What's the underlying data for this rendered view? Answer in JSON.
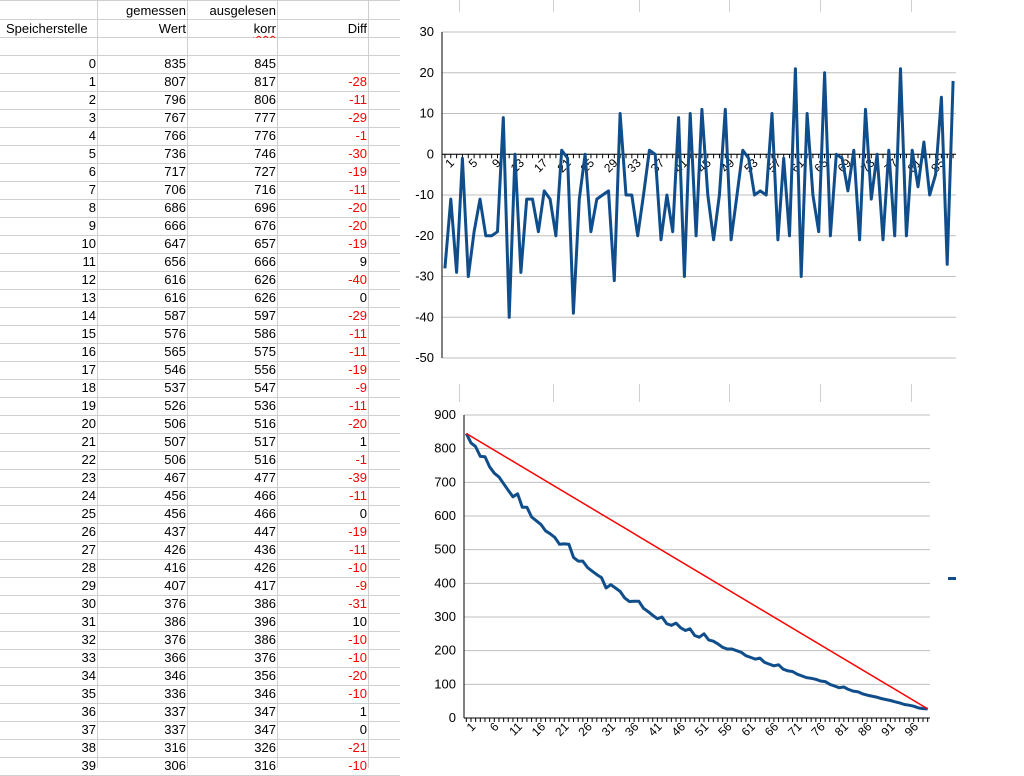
{
  "sheet": {
    "headers": {
      "row1": [
        "",
        "gemessen",
        "ausgelesen",
        ""
      ],
      "row2": [
        "Speicherstelle",
        "Wert",
        "korr",
        "Diff"
      ]
    },
    "rows": [
      {
        "addr": "0",
        "gemessen": "835",
        "ausgelesen": "845",
        "diff": ""
      },
      {
        "addr": "1",
        "gemessen": "807",
        "ausgelesen": "817",
        "diff": "-28"
      },
      {
        "addr": "2",
        "gemessen": "796",
        "ausgelesen": "806",
        "diff": "-11"
      },
      {
        "addr": "3",
        "gemessen": "767",
        "ausgelesen": "777",
        "diff": "-29"
      },
      {
        "addr": "4",
        "gemessen": "766",
        "ausgelesen": "776",
        "diff": "-1"
      },
      {
        "addr": "5",
        "gemessen": "736",
        "ausgelesen": "746",
        "diff": "-30"
      },
      {
        "addr": "6",
        "gemessen": "717",
        "ausgelesen": "727",
        "diff": "-19"
      },
      {
        "addr": "7",
        "gemessen": "706",
        "ausgelesen": "716",
        "diff": "-11"
      },
      {
        "addr": "8",
        "gemessen": "686",
        "ausgelesen": "696",
        "diff": "-20"
      },
      {
        "addr": "9",
        "gemessen": "666",
        "ausgelesen": "676",
        "diff": "-20"
      },
      {
        "addr": "10",
        "gemessen": "647",
        "ausgelesen": "657",
        "diff": "-19"
      },
      {
        "addr": "11",
        "gemessen": "656",
        "ausgelesen": "666",
        "diff": "9"
      },
      {
        "addr": "12",
        "gemessen": "616",
        "ausgelesen": "626",
        "diff": "-40"
      },
      {
        "addr": "13",
        "gemessen": "616",
        "ausgelesen": "626",
        "diff": "0"
      },
      {
        "addr": "14",
        "gemessen": "587",
        "ausgelesen": "597",
        "diff": "-29"
      },
      {
        "addr": "15",
        "gemessen": "576",
        "ausgelesen": "586",
        "diff": "-11"
      },
      {
        "addr": "16",
        "gemessen": "565",
        "ausgelesen": "575",
        "diff": "-11"
      },
      {
        "addr": "17",
        "gemessen": "546",
        "ausgelesen": "556",
        "diff": "-19"
      },
      {
        "addr": "18",
        "gemessen": "537",
        "ausgelesen": "547",
        "diff": "-9"
      },
      {
        "addr": "19",
        "gemessen": "526",
        "ausgelesen": "536",
        "diff": "-11"
      },
      {
        "addr": "20",
        "gemessen": "506",
        "ausgelesen": "516",
        "diff": "-20"
      },
      {
        "addr": "21",
        "gemessen": "507",
        "ausgelesen": "517",
        "diff": "1"
      },
      {
        "addr": "22",
        "gemessen": "506",
        "ausgelesen": "516",
        "diff": "-1"
      },
      {
        "addr": "23",
        "gemessen": "467",
        "ausgelesen": "477",
        "diff": "-39"
      },
      {
        "addr": "24",
        "gemessen": "456",
        "ausgelesen": "466",
        "diff": "-11"
      },
      {
        "addr": "25",
        "gemessen": "456",
        "ausgelesen": "466",
        "diff": "0"
      },
      {
        "addr": "26",
        "gemessen": "437",
        "ausgelesen": "447",
        "diff": "-19"
      },
      {
        "addr": "27",
        "gemessen": "426",
        "ausgelesen": "436",
        "diff": "-11"
      },
      {
        "addr": "28",
        "gemessen": "416",
        "ausgelesen": "426",
        "diff": "-10"
      },
      {
        "addr": "29",
        "gemessen": "407",
        "ausgelesen": "417",
        "diff": "-9"
      },
      {
        "addr": "30",
        "gemessen": "376",
        "ausgelesen": "386",
        "diff": "-31"
      },
      {
        "addr": "31",
        "gemessen": "386",
        "ausgelesen": "396",
        "diff": "10"
      },
      {
        "addr": "32",
        "gemessen": "376",
        "ausgelesen": "386",
        "diff": "-10"
      },
      {
        "addr": "33",
        "gemessen": "366",
        "ausgelesen": "376",
        "diff": "-10"
      },
      {
        "addr": "34",
        "gemessen": "346",
        "ausgelesen": "356",
        "diff": "-20"
      },
      {
        "addr": "35",
        "gemessen": "336",
        "ausgelesen": "346",
        "diff": "-10"
      },
      {
        "addr": "36",
        "gemessen": "337",
        "ausgelesen": "347",
        "diff": "1"
      },
      {
        "addr": "37",
        "gemessen": "337",
        "ausgelesen": "347",
        "diff": "0"
      },
      {
        "addr": "38",
        "gemessen": "316",
        "ausgelesen": "326",
        "diff": "-21"
      },
      {
        "addr": "39",
        "gemessen": "306",
        "ausgelesen": "316",
        "diff": "-10"
      }
    ]
  },
  "colors": {
    "series": "#104e8b",
    "reference_line": "#ff0000",
    "negative_text": "#ff0000",
    "gridline": "#bfbfbf"
  },
  "chart_data": [
    {
      "type": "line",
      "title": "",
      "xlabel": "",
      "ylabel": "",
      "ylim": [
        -50,
        30
      ],
      "yticks": [
        30,
        20,
        10,
        0,
        -10,
        -20,
        -30,
        -40,
        -50
      ],
      "xtick_labels": [
        "1",
        "5",
        "9",
        "13",
        "17",
        "21",
        "25",
        "29",
        "33",
        "37",
        "41",
        "45",
        "49",
        "53",
        "57",
        "61",
        "65",
        "69",
        "73",
        "77",
        "81",
        "85"
      ],
      "grid": true,
      "series": [
        {
          "values": [
            -28,
            -11,
            -29,
            -1,
            -30,
            -19,
            -11,
            -20,
            -20,
            -19,
            9,
            -40,
            0,
            -29,
            -11,
            -11,
            -19,
            -9,
            -11,
            -20,
            1,
            -1,
            -39,
            -11,
            0,
            -19,
            -11,
            -10,
            -9,
            -31,
            10,
            -10,
            -10,
            -20,
            -10,
            1,
            0,
            -21,
            -10,
            -19,
            9,
            -30,
            10,
            -20,
            11,
            -10,
            -21,
            -10,
            11,
            -21,
            -10,
            1,
            -1,
            -10,
            -9,
            -10,
            10,
            -21,
            -1,
            -20,
            21,
            -30,
            10,
            -10,
            -19,
            20,
            -20,
            0,
            -1,
            -9,
            1,
            -21,
            11,
            -11,
            0,
            -21,
            1,
            -20,
            21,
            -20,
            1,
            -8,
            3,
            -10,
            -5,
            14,
            -27,
            18
          ]
        }
      ]
    },
    {
      "type": "line",
      "title": "",
      "xlabel": "",
      "ylabel": "",
      "ylim": [
        0,
        900
      ],
      "yticks": [
        900,
        800,
        700,
        600,
        500,
        400,
        300,
        200,
        100,
        0
      ],
      "xtick_labels": [
        "1",
        "6",
        "11",
        "16",
        "21",
        "26",
        "31",
        "36",
        "41",
        "46",
        "51",
        "56",
        "61",
        "66",
        "71",
        "76",
        "81",
        "86",
        "91",
        "96"
      ],
      "grid": true,
      "series": [
        {
          "color_key": "series",
          "values": [
            845,
            817,
            806,
            777,
            776,
            746,
            727,
            716,
            696,
            676,
            657,
            666,
            626,
            626,
            597,
            586,
            575,
            556,
            547,
            536,
            516,
            517,
            516,
            477,
            466,
            466,
            447,
            436,
            426,
            417,
            386,
            396,
            386,
            376,
            356,
            346,
            347,
            347,
            326,
            316,
            305,
            295,
            300,
            280,
            275,
            282,
            268,
            260,
            265,
            245,
            240,
            250,
            232,
            228,
            220,
            210,
            205,
            205,
            200,
            195,
            185,
            180,
            175,
            178,
            165,
            160,
            155,
            158,
            145,
            140,
            138,
            130,
            125,
            120,
            118,
            115,
            110,
            108,
            100,
            95,
            90,
            92,
            85,
            80,
            78,
            72,
            68,
            65,
            62,
            58,
            55,
            52,
            48,
            45,
            40,
            38,
            35,
            30,
            28,
            27
          ]
        },
        {
          "color_key": "reference_line",
          "x": [
            1,
            100
          ],
          "values": [
            845,
            27
          ]
        }
      ]
    }
  ]
}
